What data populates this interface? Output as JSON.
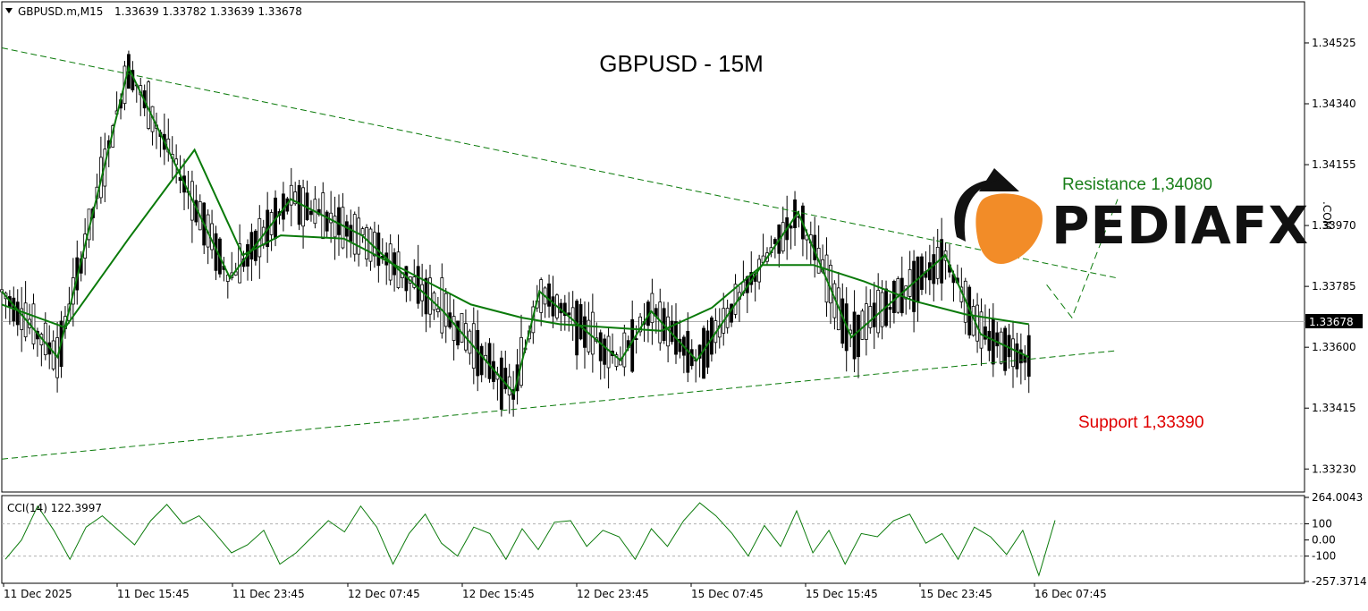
{
  "header": {
    "symbol": "GBPUSD.m,M15",
    "ohlc": "1.33639 1.33782 1.33639 1.33678"
  },
  "title": "GBPUSD - 15M",
  "annotations": {
    "resistance": "Resistance 1,34080",
    "support": "Support 1,33390",
    "resistance_color": "#1a7f1a",
    "support_color": "#e00000"
  },
  "logo": {
    "text": "PEDIAFX",
    "partial_text": ".COM",
    "accent_color": "#f28c28"
  },
  "current_price": "1.33678",
  "cci": {
    "label": "CCI(14) 122.3997",
    "max_label": "264.0043",
    "min_label": "-257.3714",
    "levels": [
      "100",
      "0.00",
      "-100"
    ]
  },
  "colors": {
    "line": "#0a7a0a",
    "grid": "#000000",
    "background": "#ffffff"
  },
  "chart_data": [
    {
      "type": "candlestick",
      "title": "GBPUSD - 15M",
      "y_ticks": [
        "1.34525",
        "1.34340",
        "1.34155",
        "1.33970",
        "1.33785",
        "1.33600",
        "1.33415",
        "1.33230"
      ],
      "y_tick_values": [
        1.34525,
        1.3434,
        1.34155,
        1.3397,
        1.33785,
        1.336,
        1.33415,
        1.3323
      ],
      "x_ticks": [
        "11 Dec 2025",
        "11 Dec 15:45",
        "11 Dec 23:45",
        "12 Dec 07:45",
        "12 Dec 15:45",
        "12 Dec 23:45",
        "15 Dec 07:45",
        "15 Dec 15:45",
        "15 Dec 23:45",
        "16 Dec 07:45"
      ],
      "ylim": [
        1.3316,
        1.3465
      ],
      "series": [
        {
          "name": "",
          "kind": "zigzag",
          "points": [
            [
              0,
              1.3377
            ],
            [
              2.2,
              1.3357
            ],
            [
              5,
              1.3445
            ],
            [
              9,
              1.3381
            ],
            [
              11.4,
              1.3405
            ],
            [
              14.2,
              1.3394
            ],
            [
              17.4,
              1.3371
            ],
            [
              20.2,
              1.3346
            ],
            [
              21.2,
              1.3377
            ],
            [
              24.4,
              1.3356
            ],
            [
              25.6,
              1.3371
            ],
            [
              27.4,
              1.3356
            ],
            [
              31.4,
              1.3401
            ],
            [
              33.5,
              1.3363
            ],
            [
              37.2,
              1.3388
            ],
            [
              38.6,
              1.3364
            ],
            [
              40.5,
              1.3357
            ]
          ]
        },
        {
          "name": "",
          "kind": "moving_average",
          "points": [
            [
              0,
              1.3373
            ],
            [
              2.5,
              1.3366
            ],
            [
              5,
              1.3393
            ],
            [
              7.6,
              1.342
            ],
            [
              9.5,
              1.3388
            ],
            [
              11,
              1.3394
            ],
            [
              13.5,
              1.3393
            ],
            [
              16,
              1.3383
            ],
            [
              18.5,
              1.3373
            ],
            [
              20.5,
              1.3369
            ],
            [
              22,
              1.3367
            ],
            [
              24,
              1.3366
            ],
            [
              26,
              1.3365
            ],
            [
              28,
              1.3372
            ],
            [
              30,
              1.3385
            ],
            [
              32,
              1.3385
            ],
            [
              34,
              1.338
            ],
            [
              36,
              1.3374
            ],
            [
              38,
              1.337
            ],
            [
              40.5,
              1.3367
            ]
          ]
        },
        {
          "name": "",
          "kind": "trendline_upper",
          "points": [
            [
              0,
              1.3451
            ],
            [
              44,
              1.3381
            ]
          ]
        },
        {
          "name": "",
          "kind": "trendline_lower",
          "points": [
            [
              0,
              1.3326
            ],
            [
              44,
              1.3359
            ]
          ]
        },
        {
          "name": "",
          "kind": "projection",
          "points": [
            [
              41.2,
              1.3379
            ],
            [
              42.2,
              1.3369
            ],
            [
              44,
              1.3405
            ]
          ]
        }
      ]
    },
    {
      "type": "line",
      "title": "CCI(14) 122.3997",
      "ylim": [
        -257.3714,
        264.0043
      ],
      "y_ticks": [
        "264.0043",
        "100",
        "0.00",
        "-100",
        "-257.3714"
      ],
      "values": [
        -120,
        0,
        210,
        60,
        -120,
        80,
        150,
        60,
        -30,
        120,
        220,
        100,
        150,
        40,
        -80,
        -30,
        60,
        -150,
        -80,
        20,
        120,
        50,
        210,
        80,
        -150,
        40,
        160,
        -20,
        -100,
        80,
        40,
        -120,
        70,
        -60,
        110,
        120,
        -40,
        60,
        20,
        -120,
        70,
        -40,
        120,
        230,
        150,
        40,
        -100,
        90,
        -40,
        180,
        -80,
        60,
        -150,
        40,
        20,
        120,
        160,
        -20,
        40,
        -120,
        80,
        20,
        -90,
        60,
        -220,
        122
      ]
    }
  ]
}
